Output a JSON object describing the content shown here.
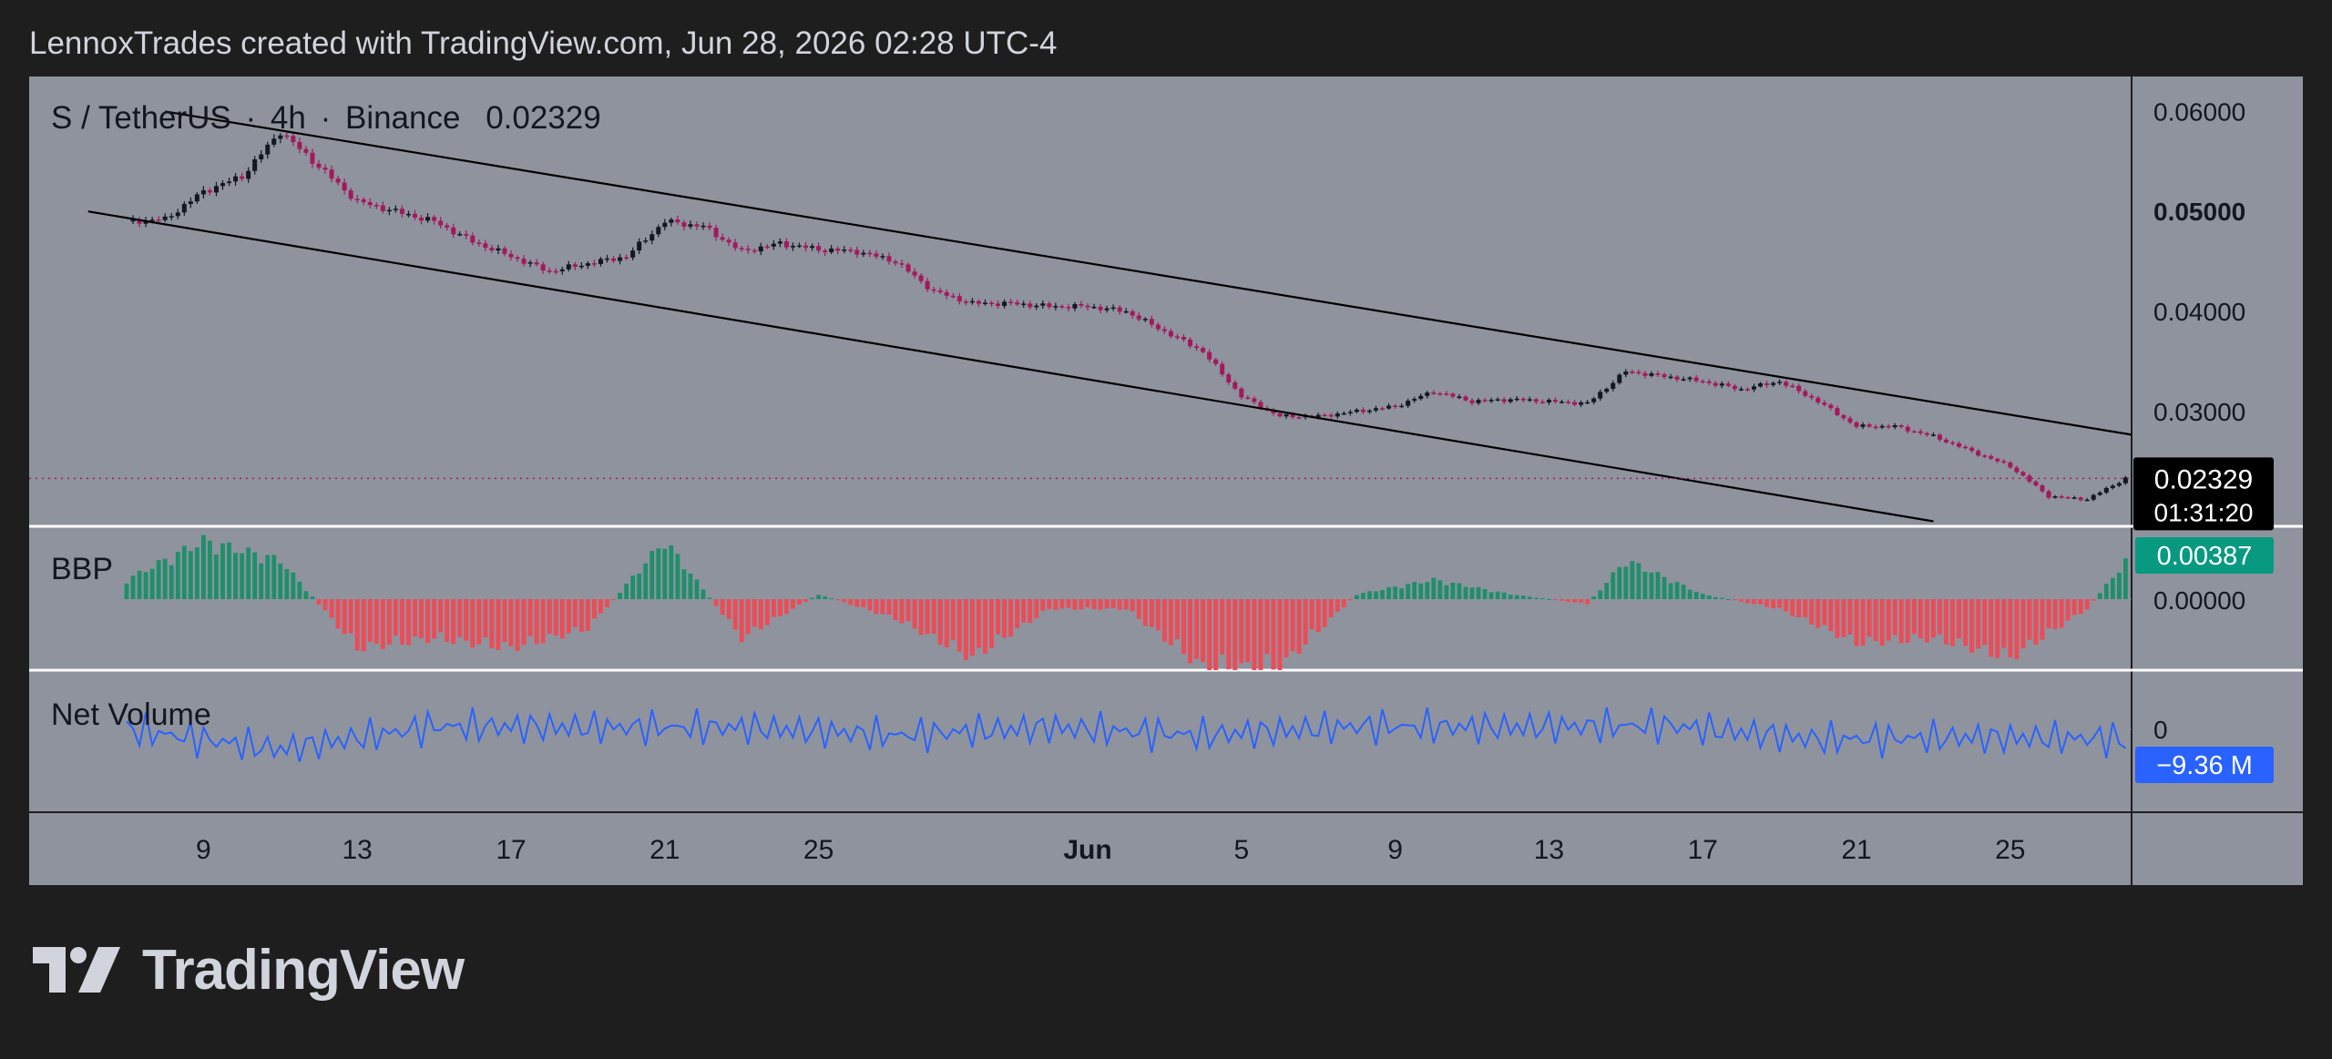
{
  "header": {
    "attribution": "LennoxTrades created with TradingView.com, Jun 28, 2026 02:28 UTC-4"
  },
  "legend": {
    "symbol": "S / TetherUS",
    "interval": "4h",
    "exchange": "Binance",
    "last_price": "0.02329"
  },
  "panes": {
    "bbp_label": "BBP",
    "netvol_label": "Net Volume"
  },
  "price_axis": {
    "ticks": [
      "0.06000",
      "0.05000",
      "0.04000",
      "0.03000"
    ],
    "bold_tick": "0.05000",
    "current_price": "0.02329",
    "countdown": "01:31:20"
  },
  "bbp_axis": {
    "current": "0.00387",
    "zero": "0.00000"
  },
  "netvol_axis": {
    "current": "−9.36 M",
    "zero": "0"
  },
  "time_axis": {
    "labels": [
      "9",
      "13",
      "17",
      "21",
      "25",
      "Jun",
      "5",
      "9",
      "13",
      "17",
      "21",
      "25"
    ],
    "bold_label": "Jun"
  },
  "brand": {
    "name": "TradingView"
  },
  "colors": {
    "pane_bg": "#8f939e",
    "up_candle": "#131722",
    "down_candle": "#a3195b",
    "bbp_positive": "#1e8f6a",
    "bbp_negative": "#ef4a55",
    "net_volume_line": "#2962ff",
    "price_label_bg": "#000000",
    "bbp_label_bg": "#089981",
    "netvol_label_bg": "#2962ff"
  },
  "chart_data": {
    "type": "candlestick",
    "interval": "4h",
    "x_axis": "date",
    "y_range_price": [
      0.0185,
      0.0635
    ],
    "series": [
      {
        "name": "S / TetherUS",
        "type": "close",
        "points": [
          [
            "2026-05-07",
            0.049
          ],
          [
            "2026-05-08",
            0.0492
          ],
          [
            "2026-05-09",
            0.052
          ],
          [
            "2026-05-10",
            0.0535
          ],
          [
            "2026-05-11",
            0.058
          ],
          [
            "2026-05-12",
            0.0545
          ],
          [
            "2026-05-13",
            0.051
          ],
          [
            "2026-05-14",
            0.05
          ],
          [
            "2026-05-15",
            0.049
          ],
          [
            "2026-05-16",
            0.047
          ],
          [
            "2026-05-17",
            0.0455
          ],
          [
            "2026-05-18",
            0.044
          ],
          [
            "2026-05-19",
            0.0448
          ],
          [
            "2026-05-20",
            0.0455
          ],
          [
            "2026-05-21",
            0.049
          ],
          [
            "2026-05-22",
            0.0485
          ],
          [
            "2026-05-23",
            0.046
          ],
          [
            "2026-05-24",
            0.0468
          ],
          [
            "2026-05-25",
            0.0462
          ],
          [
            "2026-05-26",
            0.046
          ],
          [
            "2026-05-27",
            0.045
          ],
          [
            "2026-05-28",
            0.042
          ],
          [
            "2026-05-29",
            0.0408
          ],
          [
            "2026-05-30",
            0.0408
          ],
          [
            "2026-05-31",
            0.0405
          ],
          [
            "2026-06-01",
            0.0405
          ],
          [
            "2026-06-02",
            0.04
          ],
          [
            "2026-06-03",
            0.038
          ],
          [
            "2026-06-04",
            0.036
          ],
          [
            "2026-06-05",
            0.0315
          ],
          [
            "2026-06-06",
            0.0295
          ],
          [
            "2026-06-07",
            0.0295
          ],
          [
            "2026-06-08",
            0.03
          ],
          [
            "2026-06-09",
            0.0305
          ],
          [
            "2026-06-10",
            0.032
          ],
          [
            "2026-06-11",
            0.031
          ],
          [
            "2026-06-12",
            0.0312
          ],
          [
            "2026-06-13",
            0.031
          ],
          [
            "2026-06-14",
            0.0308
          ],
          [
            "2026-06-15",
            0.034
          ],
          [
            "2026-06-16",
            0.0335
          ],
          [
            "2026-06-17",
            0.033
          ],
          [
            "2026-06-18",
            0.0322
          ],
          [
            "2026-06-19",
            0.033
          ],
          [
            "2026-06-20",
            0.031
          ],
          [
            "2026-06-21",
            0.0285
          ],
          [
            "2026-06-22",
            0.0285
          ],
          [
            "2026-06-23",
            0.0275
          ],
          [
            "2026-06-24",
            0.026
          ],
          [
            "2026-06-25",
            0.0245
          ],
          [
            "2026-06-26",
            0.0215
          ],
          [
            "2026-06-27",
            0.0212
          ],
          [
            "2026-06-28",
            0.0233
          ]
        ]
      },
      {
        "name": "BBP",
        "points": [
          [
            "2026-05-07",
            0.002
          ],
          [
            "2026-05-09",
            0.006
          ],
          [
            "2026-05-11",
            0.004
          ],
          [
            "2026-05-13",
            -0.005
          ],
          [
            "2026-05-15",
            -0.004
          ],
          [
            "2026-05-17",
            -0.005
          ],
          [
            "2026-05-19",
            -0.003
          ],
          [
            "2026-05-21",
            0.006
          ],
          [
            "2026-05-23",
            -0.004
          ],
          [
            "2026-05-25",
            0.0005
          ],
          [
            "2026-05-27",
            -0.002
          ],
          [
            "2026-05-29",
            -0.006
          ],
          [
            "2026-05-31",
            -0.001
          ],
          [
            "2026-06-02",
            -0.001
          ],
          [
            "2026-06-04",
            -0.007
          ],
          [
            "2026-06-06",
            -0.007
          ],
          [
            "2026-06-08",
            0.0005
          ],
          [
            "2026-06-10",
            0.002
          ],
          [
            "2026-06-12",
            0.0005
          ],
          [
            "2026-06-14",
            -0.0005
          ],
          [
            "2026-06-15",
            0.004
          ],
          [
            "2026-06-17",
            0.0005
          ],
          [
            "2026-06-19",
            -0.001
          ],
          [
            "2026-06-21",
            -0.0045
          ],
          [
            "2026-06-23",
            -0.004
          ],
          [
            "2026-06-25",
            -0.006
          ],
          [
            "2026-06-27",
            -0.001
          ],
          [
            "2026-06-28",
            0.00387
          ]
        ]
      },
      {
        "name": "Net Volume",
        "points": [
          [
            "2026-05-07",
            0
          ],
          [
            "2026-05-11",
            -20
          ],
          [
            "2026-05-15",
            3
          ],
          [
            "2026-05-19",
            2
          ],
          [
            "2026-05-23",
            2
          ],
          [
            "2026-05-27",
            -6
          ],
          [
            "2026-05-31",
            2
          ],
          [
            "2026-06-04",
            -6
          ],
          [
            "2026-06-08",
            3
          ],
          [
            "2026-06-12",
            2
          ],
          [
            "2026-06-16",
            4
          ],
          [
            "2026-06-20",
            -10
          ],
          [
            "2026-06-24",
            -8
          ],
          [
            "2026-06-28",
            -9.36
          ]
        ]
      }
    ],
    "trendlines": [
      {
        "name": "upper",
        "from": [
          "2026-05-08",
          0.06
        ],
        "to": [
          "2026-06-30",
          0.0265
        ]
      },
      {
        "name": "lower",
        "from": [
          "2026-05-06",
          0.05
        ],
        "to": [
          "2026-06-23",
          0.019
        ]
      }
    ]
  }
}
